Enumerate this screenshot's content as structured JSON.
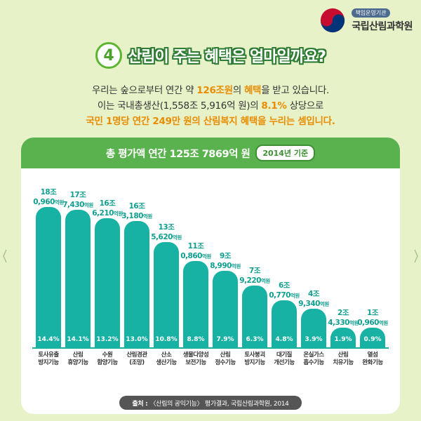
{
  "org": {
    "badge": "책임운영기관",
    "name": "국립산림과학원"
  },
  "header": {
    "number": "4",
    "title": "산림이 주는 혜택은 얼마일까요?"
  },
  "intro": {
    "line1_pre": "우리는 숲으로부터 연간 약 ",
    "line1_hl1": "126조원",
    "line1_mid": "의 ",
    "line1_hl2": "혜택",
    "line1_post": "을 받고 있습니다.",
    "line2_pre": "이는 국내총생산(1,558조 5,916억 원)의 ",
    "line2_hl": "8.1%",
    "line2_post": " 상당으로",
    "line3": "국민 1명당 연간 249만 원의 산림복지 혜택을 누리는 셈입니다."
  },
  "card": {
    "title": "총 평가액 연간 125조 7869억 원",
    "badge": "2014년 기준"
  },
  "chart_data": {
    "type": "bar",
    "title": "총 평가액 연간 125조 7869억 원",
    "subtitle": "2014년 기준",
    "unit": "억원",
    "categories": [
      [
        "토사유출",
        "방지기능"
      ],
      [
        "산림",
        "휴양기능"
      ],
      [
        "수원",
        "함양기능"
      ],
      [
        "산림경관",
        "(조망)"
      ],
      [
        "산소",
        "생산기능"
      ],
      [
        "생물다양성",
        "보전기능"
      ],
      [
        "산림",
        "정수기능"
      ],
      [
        "토사붕괴",
        "방지기능"
      ],
      [
        "대기질",
        "개선기능"
      ],
      [
        "온실가스",
        "흡수기능"
      ],
      [
        "산림",
        "치유기능"
      ],
      [
        "열섬",
        "완화기능"
      ]
    ],
    "values": [
      180960,
      177430,
      166210,
      163180,
      135620,
      110860,
      98990,
      79220,
      60770,
      49340,
      24330,
      10960
    ],
    "value_labels": [
      [
        "18조",
        "0,960"
      ],
      [
        "17조",
        "7,430"
      ],
      [
        "16조",
        "6,210"
      ],
      [
        "16조",
        "3,180"
      ],
      [
        "13조",
        "5,620"
      ],
      [
        "11조",
        "0,860"
      ],
      [
        "9조",
        "8,990"
      ],
      [
        "7조",
        "9,220"
      ],
      [
        "6조",
        "0,770"
      ],
      [
        "4조",
        "9,340"
      ],
      [
        "2조",
        "4,330"
      ],
      [
        "1조",
        "0,960"
      ]
    ],
    "percents": [
      "14.4%",
      "14.1%",
      "13.2%",
      "13.0%",
      "10.8%",
      "8.8%",
      "7.9%",
      "6.3%",
      "4.8%",
      "3.9%",
      "1.9%",
      "0.9%"
    ],
    "colors": {
      "bar": "#18b2a4",
      "label": "#0f9e8f"
    }
  },
  "source": {
    "label": "출처 :",
    "text": "〈산림의 공익기능〉 평가결과, 국립산림과학원, 2014"
  }
}
